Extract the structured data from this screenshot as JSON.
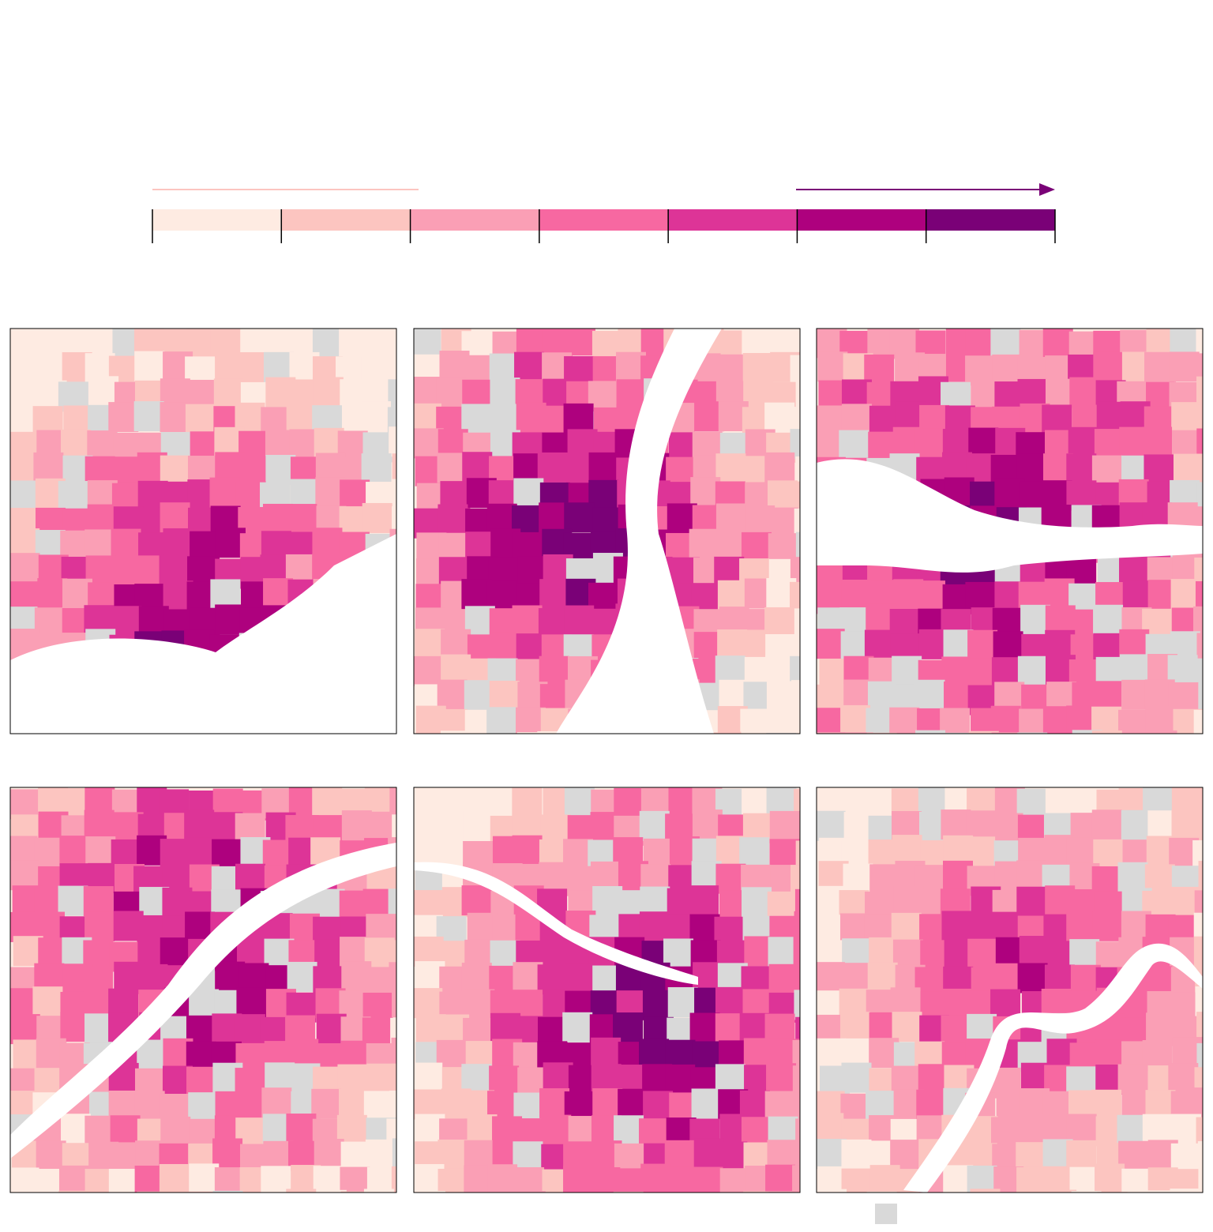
{
  "legend": {
    "colors": [
      "#feebe2",
      "#fcc5c0",
      "#fa9fb5",
      "#f768a1",
      "#dd3497",
      "#ae017e",
      "#7a0177"
    ]
  },
  "no_data_color": "#d9d9d9"
}
